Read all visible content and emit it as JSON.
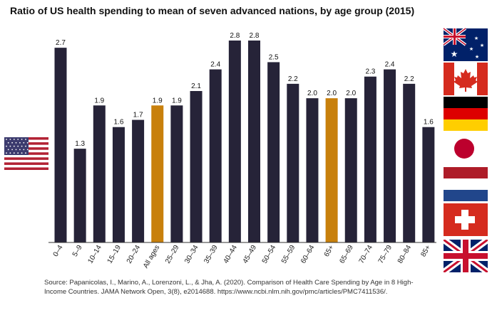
{
  "chart_data": {
    "type": "bar",
    "title": "Ratio of US health spending to mean of seven advanced nations, by age group (2015)",
    "xlabel": "",
    "ylabel": "",
    "ylim": [
      0,
      2.8
    ],
    "grid": false,
    "legend": "none",
    "categories": [
      "0–4",
      "5–9",
      "10–14",
      "15–19",
      "20–24",
      "All ages",
      "25–29",
      "30–34",
      "35–39",
      "40–44",
      "45–49",
      "50–54",
      "55–59",
      "60–64",
      "65+",
      "65–69",
      "70–74",
      "75–79",
      "80–84",
      "85+"
    ],
    "values": [
      2.7,
      1.3,
      1.9,
      1.6,
      1.7,
      1.9,
      1.9,
      2.1,
      2.4,
      2.8,
      2.8,
      2.5,
      2.2,
      2.0,
      2.0,
      2.0,
      2.3,
      2.4,
      2.2,
      1.6
    ],
    "value_labels": [
      "2.7",
      "1.3",
      "1.9",
      "1.6",
      "1.7",
      "1.9",
      "1.9",
      "2.1",
      "2.4",
      "2.8",
      "2.8",
      "2.5",
      "2.2",
      "2.0",
      "2.0",
      "2.0",
      "2.3",
      "2.4",
      "2.2",
      "1.6"
    ],
    "highlighted": [
      "All ages",
      "65+"
    ],
    "colors": {
      "bar": "#262338",
      "highlight": "#c8800c",
      "axis": "#333333"
    }
  },
  "flags": {
    "left": "united-states-flag",
    "right": [
      "australia-flag",
      "canada-flag",
      "germany-flag",
      "japan-flag",
      "netherlands-flag",
      "switzerland-flag",
      "united-kingdom-flag"
    ]
  },
  "source": {
    "line1": "Source: Papanicolas, I., Marino, A., Lorenzoni, L., & Jha, A. (2020). Comparison of Health Care Spending by Age in 8 High-",
    "line2": "Income Countries. JAMA Network Open, 3(8), e2014688. https://www.ncbi.nlm.nih.gov/pmc/articles/PMC7411536/."
  }
}
